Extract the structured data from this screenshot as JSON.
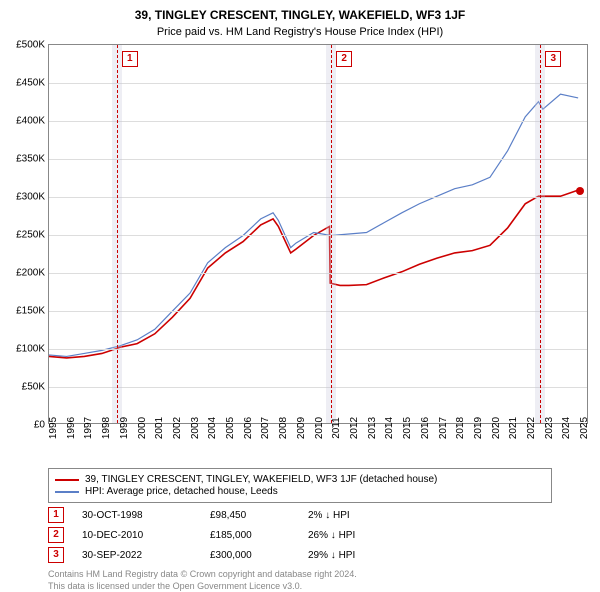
{
  "title": "39, TINGLEY CRESCENT, TINGLEY, WAKEFIELD, WF3 1JF",
  "subtitle": "Price paid vs. HM Land Registry's House Price Index (HPI)",
  "chart": {
    "type": "line",
    "background_color": "#ffffff",
    "grid_color": "#dddddd",
    "border_color": "#888888",
    "ylim": [
      0,
      500000
    ],
    "ytick_step": 50000,
    "ytick_labels": [
      "£0",
      "£50K",
      "£100K",
      "£150K",
      "£200K",
      "£250K",
      "£300K",
      "£350K",
      "£400K",
      "£450K",
      "£500K"
    ],
    "xlim": [
      1995,
      2025.5
    ],
    "xticks": [
      1995,
      1996,
      1997,
      1998,
      1999,
      2000,
      2001,
      2002,
      2003,
      2004,
      2005,
      2006,
      2007,
      2008,
      2009,
      2010,
      2011,
      2012,
      2013,
      2014,
      2015,
      2016,
      2017,
      2018,
      2019,
      2020,
      2021,
      2022,
      2023,
      2024,
      2025
    ],
    "marker_band_color": "rgba(200,200,220,0.3)",
    "marker_line_color": "#cc0000",
    "markers": [
      {
        "n": "1",
        "x": 1998.83
      },
      {
        "n": "2",
        "x": 2010.94
      },
      {
        "n": "3",
        "x": 2022.75
      }
    ],
    "series": [
      {
        "name": "property",
        "label": "39, TINGLEY CRESCENT, TINGLEY, WAKEFIELD, WF3 1JF (detached house)",
        "color": "#cc0000",
        "width": 1.6,
        "end_dot": true,
        "points": [
          [
            1995,
            88000
          ],
          [
            1996,
            86000
          ],
          [
            1997,
            88000
          ],
          [
            1998,
            92000
          ],
          [
            1998.83,
            98450
          ],
          [
            1999,
            100000
          ],
          [
            2000,
            105000
          ],
          [
            2001,
            118000
          ],
          [
            2002,
            140000
          ],
          [
            2003,
            165000
          ],
          [
            2004,
            205000
          ],
          [
            2005,
            225000
          ],
          [
            2006,
            240000
          ],
          [
            2007,
            262000
          ],
          [
            2007.7,
            270000
          ],
          [
            2008,
            260000
          ],
          [
            2008.7,
            225000
          ],
          [
            2009,
            230000
          ],
          [
            2010,
            248000
          ],
          [
            2010.9,
            260000
          ],
          [
            2010.94,
            185000
          ],
          [
            2011.5,
            182000
          ],
          [
            2012,
            182000
          ],
          [
            2013,
            183000
          ],
          [
            2014,
            192000
          ],
          [
            2015,
            200000
          ],
          [
            2016,
            210000
          ],
          [
            2017,
            218000
          ],
          [
            2018,
            225000
          ],
          [
            2019,
            228000
          ],
          [
            2020,
            235000
          ],
          [
            2021,
            258000
          ],
          [
            2022,
            290000
          ],
          [
            2022.75,
            300000
          ],
          [
            2023,
            300000
          ],
          [
            2024,
            300000
          ],
          [
            2025,
            308000
          ]
        ]
      },
      {
        "name": "hpi",
        "label": "HPI: Average price, detached house, Leeds",
        "color": "#5b7fc7",
        "width": 1.2,
        "end_dot": false,
        "points": [
          [
            1995,
            90000
          ],
          [
            1996,
            88000
          ],
          [
            1997,
            92000
          ],
          [
            1998,
            96000
          ],
          [
            1999,
            102000
          ],
          [
            2000,
            110000
          ],
          [
            2001,
            124000
          ],
          [
            2002,
            148000
          ],
          [
            2003,
            172000
          ],
          [
            2004,
            212000
          ],
          [
            2005,
            232000
          ],
          [
            2006,
            248000
          ],
          [
            2007,
            270000
          ],
          [
            2007.7,
            278000
          ],
          [
            2008,
            268000
          ],
          [
            2008.7,
            232000
          ],
          [
            2009,
            238000
          ],
          [
            2010,
            252000
          ],
          [
            2011,
            248000
          ],
          [
            2012,
            250000
          ],
          [
            2013,
            252000
          ],
          [
            2014,
            265000
          ],
          [
            2015,
            278000
          ],
          [
            2016,
            290000
          ],
          [
            2017,
            300000
          ],
          [
            2018,
            310000
          ],
          [
            2019,
            315000
          ],
          [
            2020,
            325000
          ],
          [
            2021,
            360000
          ],
          [
            2022,
            405000
          ],
          [
            2022.75,
            425000
          ],
          [
            2023,
            415000
          ],
          [
            2024,
            435000
          ],
          [
            2025,
            430000
          ]
        ]
      }
    ]
  },
  "legend": [
    {
      "color": "#cc0000",
      "label": "39, TINGLEY CRESCENT, TINGLEY, WAKEFIELD, WF3 1JF (detached house)"
    },
    {
      "color": "#5b7fc7",
      "label": "HPI: Average price, detached house, Leeds"
    }
  ],
  "events": [
    {
      "n": "1",
      "date": "30-OCT-1998",
      "price": "£98,450",
      "delta": "2% ↓ HPI"
    },
    {
      "n": "2",
      "date": "10-DEC-2010",
      "price": "£185,000",
      "delta": "26% ↓ HPI"
    },
    {
      "n": "3",
      "date": "30-SEP-2022",
      "price": "£300,000",
      "delta": "29% ↓ HPI"
    }
  ],
  "footer_line1": "Contains HM Land Registry data © Crown copyright and database right 2024.",
  "footer_line2": "This data is licensed under the Open Government Licence v3.0."
}
